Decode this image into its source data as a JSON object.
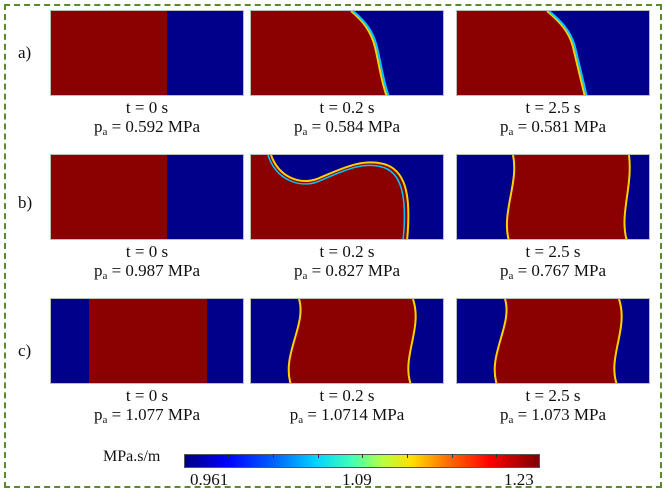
{
  "rows": [
    {
      "label": "a)",
      "panels": [
        {
          "time": "t = 0 s",
          "p_prefix": "p",
          "p_sub": "a",
          "p_value": " = 0.592 MPa"
        },
        {
          "time": "t = 0.2 s",
          "p_prefix": "p",
          "p_sub": "a",
          "p_value": " = 0.584 MPa"
        },
        {
          "time": "t = 2.5 s",
          "p_prefix": "p",
          "p_sub": "a",
          "p_value": " = 0.581 MPa"
        }
      ]
    },
    {
      "label": "b)",
      "panels": [
        {
          "time": "t = 0 s",
          "p_prefix": "p",
          "p_sub": "a",
          "p_value": " = 0.987 MPa"
        },
        {
          "time": "t = 0.2 s",
          "p_prefix": "p",
          "p_sub": "a",
          "p_value": " = 0.827 MPa"
        },
        {
          "time": "t = 2.5 s",
          "p_prefix": "p",
          "p_sub": "a",
          "p_value": " = 0.767 MPa"
        }
      ]
    },
    {
      "label": "c)",
      "panels": [
        {
          "time": "t = 0 s",
          "p_prefix": "p",
          "p_sub": "a",
          "p_value": " = 1.077 MPa"
        },
        {
          "time": "t = 0.2 s",
          "p_prefix": "p",
          "p_sub": "a",
          "p_value": " = 1.0714 MPa"
        },
        {
          "time": "t = 2.5 s",
          "p_prefix": "p",
          "p_sub": "a",
          "p_value": " = 1.073 MPa"
        }
      ]
    }
  ],
  "colorbar": {
    "title": "MPa.s/m",
    "min_label": "0.961",
    "mid_label": "1.09",
    "max_label": "1.23",
    "colormap": "jet",
    "high_color": "#8b0000",
    "low_color": "#00008b"
  },
  "frame_color": "#5a8a2c"
}
